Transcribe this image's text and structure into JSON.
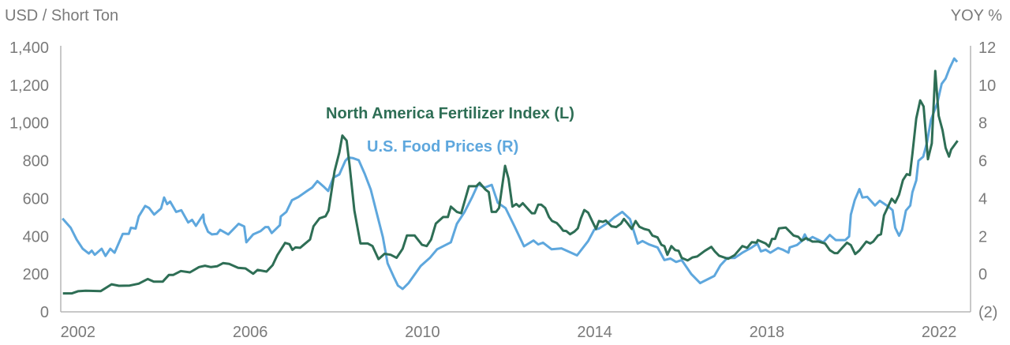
{
  "chart_data": {
    "type": "line",
    "title": "",
    "left_axis": {
      "label": "USD / Short Ton",
      "ylim": [
        0,
        1400
      ],
      "ticks": [
        0,
        200,
        400,
        600,
        800,
        1000,
        1200,
        1400
      ],
      "tick_labels": [
        "0",
        "200",
        "400",
        "600",
        "800",
        "1,000",
        "1,200",
        "1,400"
      ]
    },
    "right_axis": {
      "label": "YOY %",
      "ylim": [
        -2,
        12
      ],
      "ticks": [
        -2,
        0,
        2,
        4,
        6,
        8,
        10,
        12
      ],
      "tick_labels": [
        "(2)",
        "0",
        "2",
        "4",
        "6",
        "8",
        "10",
        "12"
      ]
    },
    "x_axis": {
      "xlim": [
        2001.6,
        2022.73
      ],
      "ticks": [
        2002,
        2006,
        2010,
        2014,
        2018,
        2022
      ],
      "tick_labels": [
        "2002",
        "2006",
        "2010",
        "2014",
        "2018",
        "2022"
      ]
    },
    "grid": false,
    "series": [
      {
        "name": "North America Fertilizer Index (L)",
        "axis": "left",
        "color": "#2e6e55",
        "x": [
          2001.65,
          2001.86,
          2002.0,
          2002.18,
          2002.53,
          2002.78,
          2002.95,
          2003.2,
          2003.41,
          2003.62,
          2003.76,
          2003.97,
          2004.11,
          2004.21,
          2004.39,
          2004.6,
          2004.81,
          2004.95,
          2005.09,
          2005.23,
          2005.37,
          2005.51,
          2005.72,
          2005.89,
          2006.07,
          2006.17,
          2006.38,
          2006.52,
          2006.63,
          2006.81,
          2006.91,
          2006.98,
          2007.05,
          2007.16,
          2007.26,
          2007.39,
          2007.47,
          2007.61,
          2007.75,
          2007.82,
          2007.96,
          2008.07,
          2008.14,
          2008.24,
          2008.31,
          2008.42,
          2008.56,
          2008.73,
          2008.84,
          2008.98,
          2009.12,
          2009.26,
          2009.4,
          2009.54,
          2009.64,
          2009.82,
          2009.99,
          2010.1,
          2010.2,
          2010.31,
          2010.48,
          2010.59,
          2010.66,
          2010.8,
          2010.9,
          2011.08,
          2011.25,
          2011.33,
          2011.46,
          2011.54,
          2011.61,
          2011.71,
          2011.78,
          2011.92,
          2012.0,
          2012.09,
          2012.18,
          2012.25,
          2012.33,
          2012.54,
          2012.61,
          2012.69,
          2012.76,
          2012.85,
          2012.94,
          2013.01,
          2013.12,
          2013.19,
          2013.27,
          2013.34,
          2013.43,
          2013.53,
          2013.61,
          2013.68,
          2013.76,
          2013.85,
          2013.94,
          2014.03,
          2014.1,
          2014.19,
          2014.26,
          2014.39,
          2014.5,
          2014.61,
          2014.68,
          2014.77,
          2014.86,
          2014.95,
          2015.04,
          2015.15,
          2015.26,
          2015.34,
          2015.46,
          2015.55,
          2015.62,
          2015.69,
          2015.78,
          2015.87,
          2015.95,
          2016.02,
          2016.16,
          2016.27,
          2016.38,
          2016.56,
          2016.71,
          2016.79,
          2016.89,
          2017.1,
          2017.25,
          2017.43,
          2017.54,
          2017.65,
          2017.76,
          2017.79,
          2017.97,
          2018.05,
          2018.12,
          2018.19,
          2018.28,
          2018.44,
          2018.62,
          2018.73,
          2018.81,
          2018.91,
          2019.06,
          2019.2,
          2019.35,
          2019.46,
          2019.57,
          2019.64,
          2019.75,
          2019.86,
          2019.95,
          2020.05,
          2020.15,
          2020.31,
          2020.4,
          2020.47,
          2020.58,
          2020.65,
          2020.72,
          2020.9,
          2020.98,
          2021.07,
          2021.16,
          2021.25,
          2021.32,
          2021.38,
          2021.47,
          2021.56,
          2021.64,
          2021.74,
          2021.83,
          2021.91,
          2021.99,
          2022.08,
          2022.15,
          2022.23,
          2022.28,
          2022.43
        ],
        "y": [
          98,
          98,
          109,
          112,
          110,
          146,
          138,
          139,
          149,
          174,
          160,
          160,
          195,
          195,
          216,
          209,
          237,
          244,
          237,
          241,
          258,
          254,
          233,
          230,
          202,
          222,
          213,
          247,
          300,
          365,
          358,
          328,
          341,
          339,
          358,
          383,
          453,
          495,
          506,
          536,
          745,
          843,
          933,
          906,
          773,
          536,
          362,
          362,
          348,
          279,
          307,
          302,
          286,
          334,
          404,
          404,
          355,
          348,
          383,
          467,
          502,
          502,
          557,
          529,
          522,
          665,
          665,
          683,
          648,
          634,
          529,
          529,
          550,
          773,
          704,
          557,
          571,
          557,
          575,
          522,
          522,
          567,
          567,
          550,
          502,
          481,
          470,
          453,
          429,
          428,
          411,
          425,
          442,
          495,
          539,
          525,
          481,
          439,
          481,
          476,
          483,
          453,
          449,
          467,
          492,
          467,
          439,
          481,
          450,
          439,
          432,
          404,
          394,
          355,
          348,
          302,
          348,
          327,
          323,
          286,
          272,
          288,
          293,
          323,
          344,
          320,
          297,
          281,
          300,
          348,
          339,
          369,
          366,
          380,
          362,
          345,
          386,
          386,
          442,
          446,
          404,
          397,
          376,
          390,
          372,
          372,
          362,
          327,
          311,
          311,
          339,
          366,
          353,
          306,
          325,
          372,
          362,
          372,
          404,
          411,
          511,
          599,
          578,
          620,
          697,
          729,
          724,
          836,
          1024,
          1119,
          1087,
          808,
          892,
          1275,
          1038,
          961,
          868,
          822,
          859,
          906
        ]
      },
      {
        "name": "U.S. Food Prices (R)",
        "axis": "right",
        "color": "#5ea7dd",
        "x": [
          2001.64,
          2001.83,
          2001.97,
          2002.11,
          2002.25,
          2002.32,
          2002.39,
          2002.55,
          2002.64,
          2002.75,
          2002.85,
          2003.04,
          2003.18,
          2003.23,
          2003.34,
          2003.41,
          2003.56,
          2003.65,
          2003.77,
          2003.93,
          2004.0,
          2004.07,
          2004.14,
          2004.28,
          2004.4,
          2004.56,
          2004.65,
          2004.74,
          2004.91,
          2004.93,
          2005.02,
          2005.11,
          2005.23,
          2005.3,
          2005.49,
          2005.73,
          2005.86,
          2005.91,
          2006.07,
          2006.24,
          2006.35,
          2006.42,
          2006.5,
          2006.69,
          2006.71,
          2006.84,
          2006.97,
          2007.12,
          2007.32,
          2007.44,
          2007.56,
          2007.7,
          2007.81,
          2007.93,
          2008.07,
          2008.21,
          2008.28,
          2008.38,
          2008.52,
          2008.66,
          2008.8,
          2008.94,
          2009.08,
          2009.19,
          2009.33,
          2009.43,
          2009.54,
          2009.68,
          2009.96,
          2010.17,
          2010.34,
          2010.66,
          2010.8,
          2010.98,
          2011.15,
          2011.29,
          2011.45,
          2011.61,
          2011.75,
          2011.93,
          2012.14,
          2012.36,
          2012.58,
          2012.69,
          2012.8,
          2013.0,
          2013.23,
          2013.59,
          2013.85,
          2013.99,
          2014.1,
          2014.32,
          2014.46,
          2014.64,
          2014.82,
          2015.0,
          2015.11,
          2015.26,
          2015.46,
          2015.62,
          2015.76,
          2015.89,
          2016.02,
          2016.24,
          2016.45,
          2016.78,
          2016.92,
          2017.08,
          2017.25,
          2017.43,
          2017.65,
          2017.78,
          2017.86,
          2017.97,
          2018.08,
          2018.26,
          2018.37,
          2018.5,
          2018.53,
          2018.7,
          2018.81,
          2018.88,
          2018.95,
          2019.06,
          2019.31,
          2019.46,
          2019.6,
          2019.82,
          2019.91,
          2019.95,
          2020.04,
          2020.15,
          2020.22,
          2020.33,
          2020.51,
          2020.62,
          2020.83,
          2020.92,
          2020.98,
          2021.07,
          2021.14,
          2021.23,
          2021.33,
          2021.38,
          2021.47,
          2021.52,
          2021.63,
          2021.72,
          2021.81,
          2021.96,
          2022.06,
          2022.15,
          2022.24,
          2022.35,
          2022.42
        ],
        "y": [
          2.94,
          2.45,
          1.82,
          1.34,
          1.09,
          1.24,
          1.02,
          1.34,
          0.96,
          1.34,
          1.13,
          2.13,
          2.13,
          2.45,
          2.41,
          3.05,
          3.61,
          3.5,
          3.15,
          3.47,
          4.05,
          3.7,
          3.84,
          3.29,
          3.38,
          2.73,
          2.87,
          2.55,
          3.15,
          2.73,
          2.24,
          2.1,
          2.13,
          2.34,
          2.1,
          2.66,
          2.52,
          1.68,
          2.1,
          2.27,
          2.49,
          2.49,
          2.17,
          2.59,
          3.05,
          3.29,
          3.91,
          4.08,
          4.4,
          4.58,
          4.92,
          4.64,
          4.4,
          5.1,
          5.27,
          6.0,
          6.17,
          6.14,
          6.03,
          5.31,
          4.47,
          3.22,
          1.96,
          0.57,
          -0.13,
          -0.61,
          -0.79,
          -0.47,
          0.43,
          0.85,
          1.31,
          1.68,
          2.66,
          3.29,
          4.05,
          4.75,
          4.58,
          4.72,
          3.77,
          3.49,
          2.52,
          1.47,
          1.78,
          1.57,
          1.66,
          1.31,
          1.36,
          0.99,
          1.75,
          2.35,
          2.41,
          2.73,
          3.01,
          3.29,
          2.91,
          1.61,
          1.75,
          1.57,
          1.41,
          0.74,
          0.82,
          0.64,
          0.74,
          0.01,
          -0.48,
          -0.1,
          0.46,
          0.85,
          0.85,
          1.13,
          1.41,
          1.61,
          1.2,
          1.29,
          1.13,
          1.38,
          1.29,
          1.13,
          1.41,
          1.54,
          1.75,
          2.1,
          1.8,
          1.96,
          1.68,
          2.07,
          1.8,
          1.8,
          1.99,
          3.15,
          3.91,
          4.5,
          4.05,
          4.09,
          3.63,
          3.88,
          3.56,
          3.38,
          2.45,
          2.03,
          2.35,
          3.36,
          3.63,
          4.33,
          4.96,
          6.0,
          6.21,
          6.98,
          8.16,
          9.07,
          10.07,
          10.35,
          10.88,
          11.41,
          11.23
        ]
      }
    ],
    "annotations": [
      {
        "text": "North America Fertilizer Index (L)",
        "color": "#2e6e55"
      },
      {
        "text": "U.S. Food Prices (R)",
        "color": "#5ea7dd"
      }
    ]
  }
}
